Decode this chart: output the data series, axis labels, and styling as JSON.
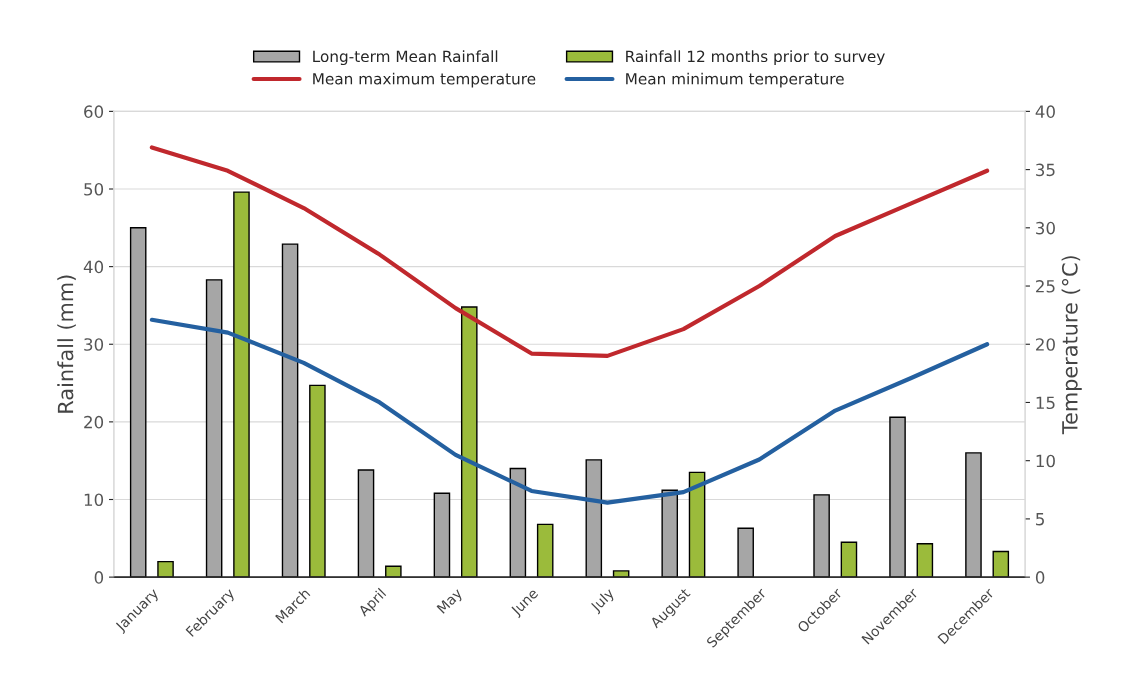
{
  "chart_data": {
    "type": "bar",
    "categories": [
      "January",
      "February",
      "March",
      "April",
      "May",
      "June",
      "July",
      "August",
      "September",
      "October",
      "November",
      "December"
    ],
    "series": [
      {
        "name": "Long-term Mean Rainfall",
        "color": "#a6a6a6",
        "values": [
          45.0,
          38.3,
          42.9,
          13.8,
          10.8,
          14.0,
          15.1,
          11.2,
          6.3,
          10.6,
          20.6,
          16.0
        ]
      },
      {
        "name": "Rainfall 12 months prior to survey",
        "color": "#9bbb3b",
        "values": [
          2.0,
          49.6,
          24.7,
          1.4,
          34.8,
          6.8,
          0.8,
          13.5,
          null,
          4.5,
          4.3,
          3.3
        ]
      },
      {
        "name": "Mean maximum temperature",
        "type": "line",
        "axis": "y2",
        "color": "#c0282d",
        "values": [
          36.9,
          34.9,
          31.7,
          27.7,
          23.1,
          19.2,
          19.0,
          21.3,
          25.0,
          29.3,
          32.1,
          34.9
        ]
      },
      {
        "name": "Mean minimum temperature",
        "type": "line",
        "axis": "y2",
        "color": "#2460a0",
        "values": [
          22.1,
          21.0,
          18.4,
          15.0,
          10.5,
          7.4,
          6.4,
          7.3,
          10.1,
          14.3,
          17.1,
          20.0
        ]
      }
    ],
    "ylabel": "Rainfall (mm)",
    "y2label": "Temperature (°C)",
    "ylim": [
      0,
      60
    ],
    "yticks": [
      0,
      10,
      20,
      30,
      40,
      50,
      60
    ],
    "y2lim": [
      0,
      40
    ],
    "y2ticks": [
      0,
      5,
      10,
      15,
      20,
      25,
      30,
      35,
      40
    ],
    "grid": "y",
    "legend": "top"
  }
}
